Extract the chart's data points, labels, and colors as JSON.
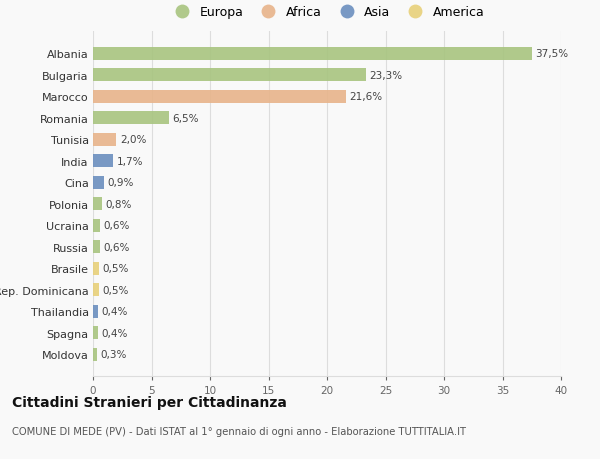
{
  "countries": [
    "Moldova",
    "Spagna",
    "Thailandia",
    "Rep. Dominicana",
    "Brasile",
    "Russia",
    "Ucraina",
    "Polonia",
    "Cina",
    "India",
    "Tunisia",
    "Romania",
    "Marocco",
    "Bulgaria",
    "Albania"
  ],
  "values": [
    0.3,
    0.4,
    0.4,
    0.5,
    0.5,
    0.6,
    0.6,
    0.8,
    0.9,
    1.7,
    2.0,
    6.5,
    21.6,
    23.3,
    37.5
  ],
  "labels": [
    "0,3%",
    "0,4%",
    "0,4%",
    "0,5%",
    "0,5%",
    "0,6%",
    "0,6%",
    "0,8%",
    "0,9%",
    "1,7%",
    "2,0%",
    "6,5%",
    "21,6%",
    "23,3%",
    "37,5%"
  ],
  "continents": [
    "Europa",
    "Europa",
    "Asia",
    "America",
    "America",
    "Europa",
    "Europa",
    "Europa",
    "Asia",
    "Asia",
    "Africa",
    "Europa",
    "Africa",
    "Europa",
    "Europa"
  ],
  "continent_colors": {
    "Europa": "#a8c47f",
    "Africa": "#e8b48a",
    "Asia": "#6b8fbf",
    "America": "#e8d07a"
  },
  "legend_order": [
    "Europa",
    "Africa",
    "Asia",
    "America"
  ],
  "title": "Cittadini Stranieri per Cittadinanza",
  "subtitle": "COMUNE DI MEDE (PV) - Dati ISTAT al 1° gennaio di ogni anno - Elaborazione TUTTITALIA.IT",
  "xlim": [
    0,
    40
  ],
  "xticks": [
    0,
    5,
    10,
    15,
    20,
    25,
    30,
    35,
    40
  ],
  "bg_color": "#f9f9f9",
  "grid_color": "#dddddd",
  "bar_height": 0.6
}
